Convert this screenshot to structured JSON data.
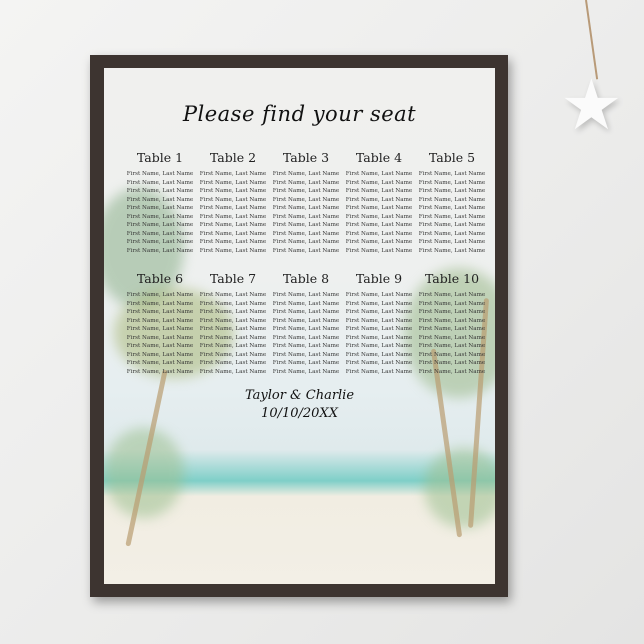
{
  "poster": {
    "title": "Please find your seat",
    "couple": "Taylor & Charlie",
    "date": "10/10/20XX",
    "guest_placeholder": "First Name, Last Name",
    "tables_row1": [
      "Table 1",
      "Table 2",
      "Table 3",
      "Table 4",
      "Table 5"
    ],
    "tables_row2": [
      "Table 6",
      "Table 7",
      "Table 8",
      "Table 9",
      "Table 10"
    ],
    "guests_per_table": 10
  },
  "colors": {
    "frame": "#3d3430",
    "sea": "#7fcfc8"
  }
}
